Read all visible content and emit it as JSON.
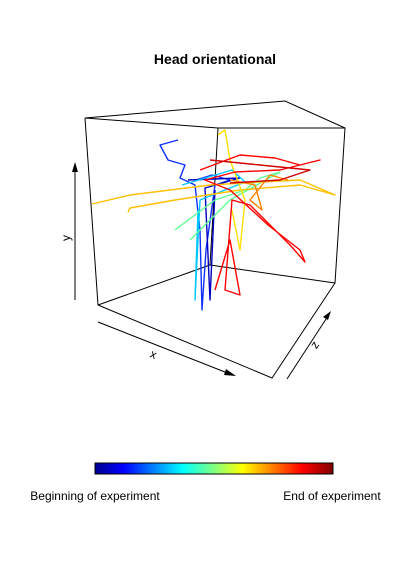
{
  "figure": {
    "title": "Head orientational",
    "x_label": "x",
    "y_label": "y",
    "z_label": "z",
    "colorbar": {
      "start_label": "Beginning of experiment",
      "end_label": "End of experiment"
    }
  }
}
